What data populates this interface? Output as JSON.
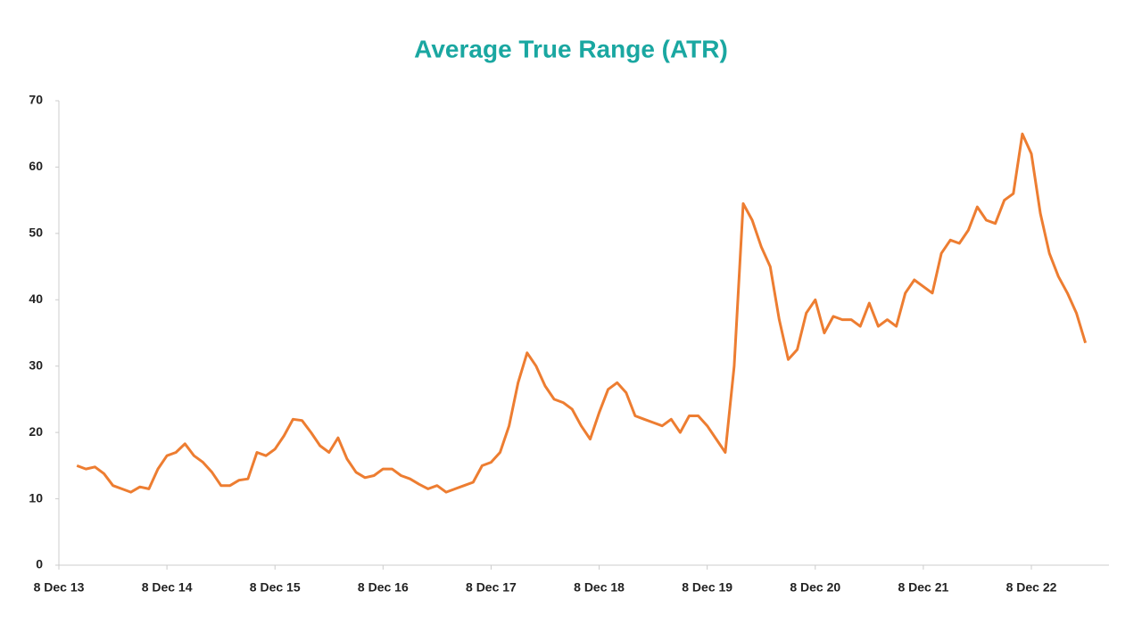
{
  "chart_data": {
    "type": "line",
    "title": "Average True Range (ATR)",
    "categories": [
      "8 Dec 13",
      null,
      null,
      null,
      null,
      null,
      null,
      null,
      null,
      null,
      null,
      null,
      "8 Dec 14",
      null,
      null,
      null,
      null,
      null,
      null,
      null,
      null,
      null,
      null,
      null,
      "8 Dec 15",
      null,
      null,
      null,
      null,
      null,
      null,
      null,
      null,
      null,
      null,
      null,
      "8 Dec 16",
      null,
      null,
      null,
      null,
      null,
      null,
      null,
      null,
      null,
      null,
      null,
      "8 Dec 17",
      null,
      null,
      null,
      null,
      null,
      null,
      null,
      null,
      null,
      null,
      null,
      "8 Dec 18",
      null,
      null,
      null,
      null,
      null,
      null,
      null,
      null,
      null,
      null,
      null,
      "8 Dec 19",
      null,
      null,
      null,
      null,
      null,
      null,
      null,
      null,
      null,
      null,
      null,
      "8 Dec 20",
      null,
      null,
      null,
      null,
      null,
      null,
      null,
      null,
      null,
      null,
      null,
      "8 Dec 21",
      null,
      null,
      null,
      null,
      null,
      null,
      null,
      null,
      null,
      null,
      null,
      "8 Dec 22",
      null,
      null,
      null,
      null,
      null,
      null
    ],
    "series": [
      {
        "name": "ATR",
        "color": "#ed7d31",
        "values": [
          null,
          null,
          15,
          14.5,
          14.8,
          13.8,
          12,
          11.5,
          11,
          11.8,
          11.5,
          14.5,
          16.5,
          17,
          18.3,
          16.5,
          15.5,
          14,
          12,
          12,
          12.8,
          13,
          17,
          16.5,
          17.5,
          19.5,
          22,
          21.8,
          20,
          18,
          17,
          19.2,
          16,
          14,
          13.2,
          13.5,
          14.5,
          14.5,
          13.5,
          13,
          12.2,
          11.5,
          12,
          11,
          11.5,
          12,
          12.5,
          15,
          15.5,
          17,
          21,
          27.5,
          32,
          30,
          27,
          25,
          24.5,
          23.5,
          21,
          19,
          23,
          26.5,
          27.5,
          26,
          22.5,
          22,
          21.5,
          21,
          22,
          20,
          22.5,
          22.5,
          21,
          19,
          17,
          30,
          54.5,
          52,
          48,
          45,
          37,
          31,
          32.5,
          38,
          40,
          35,
          37.5,
          37,
          37,
          36,
          39.5,
          36,
          37,
          36,
          41,
          43,
          42,
          41,
          47,
          49,
          48.5,
          50.5,
          54,
          52,
          51.5,
          55,
          56,
          65,
          62,
          53,
          47,
          43.5,
          41,
          38,
          33.5
        ]
      }
    ],
    "ylim": [
      0,
      70
    ],
    "yticks": [
      0,
      10,
      20,
      30,
      40,
      50,
      60,
      70
    ]
  }
}
